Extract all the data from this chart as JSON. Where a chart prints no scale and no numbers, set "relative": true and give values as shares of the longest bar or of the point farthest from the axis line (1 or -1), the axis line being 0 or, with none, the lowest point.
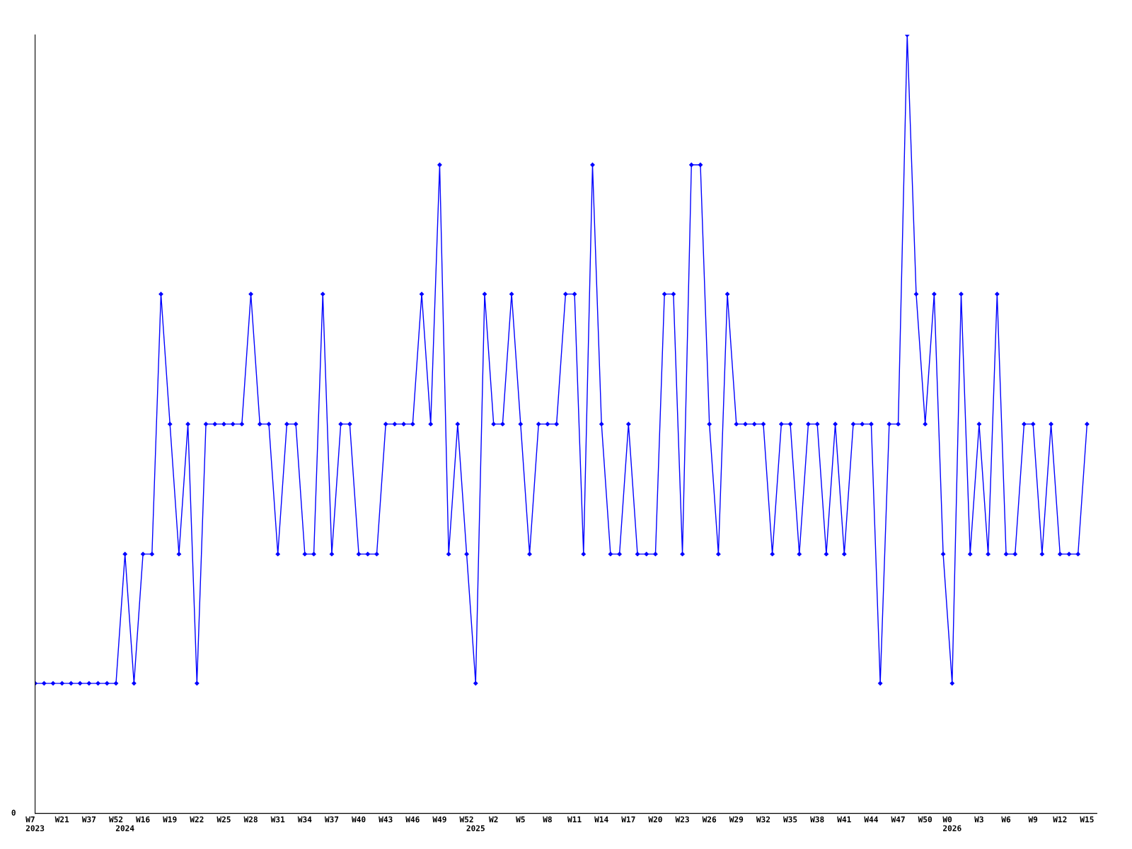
{
  "chart_data": {
    "type": "line",
    "relative": true,
    "annotations": [
      "0"
    ],
    "marker": "diamond",
    "line_style": "solid",
    "grid": false,
    "color": "#0000ff",
    "categories": [
      "W7\n2023",
      null,
      null,
      "W21",
      null,
      null,
      "W37",
      null,
      null,
      "W52",
      "\n2024",
      null,
      "W16",
      null,
      null,
      "W19",
      null,
      null,
      "W22",
      null,
      null,
      "W25",
      null,
      null,
      "W28",
      null,
      null,
      "W31",
      null,
      null,
      "W34",
      null,
      null,
      "W37",
      null,
      null,
      "W40",
      null,
      null,
      "W43",
      null,
      null,
      "W46",
      null,
      null,
      "W49",
      null,
      null,
      "W52",
      "\n2025",
      null,
      "W2",
      null,
      null,
      "W5",
      null,
      null,
      "W8",
      null,
      null,
      "W11",
      null,
      null,
      "W14",
      null,
      null,
      "W17",
      null,
      null,
      "W20",
      null,
      null,
      "W23",
      null,
      null,
      "W26",
      null,
      null,
      "W29",
      null,
      null,
      "W32",
      null,
      null,
      "W35",
      null,
      null,
      "W38",
      null,
      null,
      "W41",
      null,
      null,
      "W44",
      null,
      null,
      "W47",
      null,
      null,
      "W50",
      null,
      null,
      "W0\n2026",
      null,
      null,
      "W3",
      null,
      null,
      "W6",
      null,
      null,
      "W9",
      null,
      null,
      "W12",
      null,
      null,
      "W15"
    ],
    "values": [
      0.167,
      0.167,
      0.167,
      0.167,
      0.167,
      0.167,
      0.167,
      0.167,
      0.167,
      0.167,
      0.333,
      0.167,
      0.333,
      0.333,
      0.667,
      0.5,
      0.333,
      0.5,
      0.167,
      0.5,
      0.5,
      0.5,
      0.5,
      0.5,
      0.667,
      0.5,
      0.5,
      0.333,
      0.5,
      0.5,
      0.333,
      0.333,
      0.667,
      0.333,
      0.5,
      0.5,
      0.333,
      0.333,
      0.333,
      0.5,
      0.5,
      0.5,
      0.5,
      0.667,
      0.5,
      0.833,
      0.333,
      0.5,
      0.333,
      0.167,
      0.667,
      0.5,
      0.5,
      0.667,
      0.5,
      0.333,
      0.5,
      0.5,
      0.5,
      0.667,
      0.667,
      0.333,
      0.833,
      0.5,
      0.333,
      0.333,
      0.5,
      0.333,
      0.333,
      0.333,
      0.667,
      0.667,
      0.333,
      0.833,
      0.833,
      0.5,
      0.333,
      0.667,
      0.5,
      0.5,
      0.5,
      0.5,
      0.333,
      0.5,
      0.5,
      0.333,
      0.5,
      0.5,
      0.333,
      0.5,
      0.333,
      0.5,
      0.5,
      0.5,
      0.167,
      0.5,
      0.5,
      1,
      0.667,
      0.5,
      0.667,
      0.333,
      0.167,
      0.667,
      0.333,
      0.5,
      0.333,
      0.667,
      0.333,
      0.333,
      0.5,
      0.5,
      0.333,
      0.5,
      0.333,
      0.333,
      0.333,
      0.5
    ]
  }
}
